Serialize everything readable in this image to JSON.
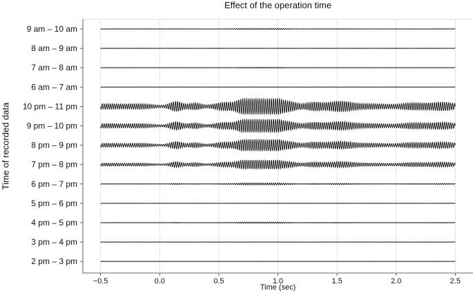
{
  "chart_data": {
    "type": "line",
    "title": "Effect of the operation time",
    "xlabel": "Time (sec)",
    "ylabel": "Time of recorded data",
    "xlim": [
      -0.65,
      2.65
    ],
    "x_ticks": [
      -0.5,
      0.0,
      0.5,
      1.0,
      1.5,
      2.0,
      2.5
    ],
    "x_tick_labels": [
      "−0.5",
      "0.0",
      "0.5",
      "1.0",
      "1.5",
      "2.0",
      "2.5"
    ],
    "x_range_signal": [
      -0.5,
      2.5
    ],
    "grid": true,
    "series": [
      {
        "name": "9 am – 10 am",
        "amplitude": 0.07
      },
      {
        "name": "8 am – 9 am",
        "amplitude": 0.02
      },
      {
        "name": "7 am – 8 am",
        "amplitude": 0.06
      },
      {
        "name": "6 am – 7 am",
        "amplitude": 0.02
      },
      {
        "name": "10 pm – 11 pm",
        "amplitude": 1.0
      },
      {
        "name": "9 pm – 10 pm",
        "amplitude": 0.82
      },
      {
        "name": "8 pm – 9 pm",
        "amplitude": 0.72
      },
      {
        "name": "7 pm – 8 pm",
        "amplitude": 0.55
      },
      {
        "name": "6 pm – 7 pm",
        "amplitude": 0.12
      },
      {
        "name": "5 pm – 6 pm",
        "amplitude": 0.03
      },
      {
        "name": "4 pm – 5 pm",
        "amplitude": 0.08
      },
      {
        "name": "3 pm – 4 pm",
        "amplitude": 0.03
      },
      {
        "name": "2 pm – 3 pm",
        "amplitude": 0.02
      }
    ],
    "line_color": "#111111",
    "grid_color": "#dddddd"
  }
}
